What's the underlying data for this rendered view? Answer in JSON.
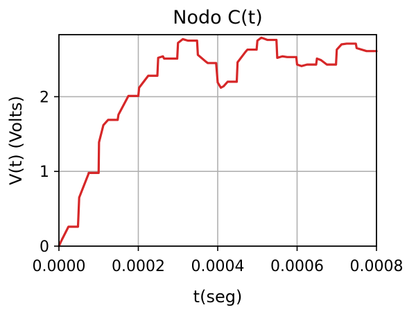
{
  "chart_data": {
    "type": "line",
    "title": "Nodo C(t)",
    "xlabel": "t(seg)",
    "ylabel": "V(t) (Volts)",
    "xlim": [
      0,
      0.0008
    ],
    "ylim": [
      0,
      2.83
    ],
    "xticks": [
      0,
      0.0002,
      0.0004,
      0.0006,
      0.0008
    ],
    "xtick_labels": [
      "0.0000",
      "0.0002",
      "0.0004",
      "0.0006",
      "0.0008"
    ],
    "yticks": [
      0,
      1,
      2
    ],
    "ytick_labels": [
      "0",
      "1",
      "2"
    ],
    "grid": true,
    "series": [
      {
        "color": "#d62728",
        "x": [
          0,
          5e-06,
          2.4e-05,
          4.8e-05,
          5.1e-05,
          7.4e-05,
          7.5e-05,
          0.0001,
          0.000101,
          0.000112,
          0.000124,
          0.000148,
          0.00015,
          0.000172,
          0.000175,
          0.0002,
          0.000202,
          0.000212,
          0.000225,
          0.000248,
          0.00025,
          0.000262,
          0.000265,
          0.000298,
          0.0003,
          0.000312,
          0.000325,
          0.000348,
          0.00035,
          0.00037,
          0.000375,
          0.000396,
          0.0004,
          0.000408,
          0.000415,
          0.000425,
          0.000448,
          0.00045,
          0.00047,
          0.000475,
          0.000498,
          0.0005,
          0.00051,
          0.000525,
          0.000548,
          0.00055,
          0.000563,
          0.000575,
          0.000598,
          0.0006,
          0.000611,
          0.000625,
          0.000648,
          0.00065,
          0.00066,
          0.000675,
          0.000698,
          0.0007,
          0.000712,
          0.000725,
          0.000748,
          0.00075,
          0.000775,
          0.0008
        ],
        "y": [
          0,
          0.06,
          0.26,
          0.26,
          0.65,
          0.96,
          0.98,
          0.98,
          1.39,
          1.62,
          1.69,
          1.69,
          1.76,
          1.98,
          2.01,
          2.01,
          2.12,
          2.19,
          2.28,
          2.28,
          2.52,
          2.54,
          2.51,
          2.51,
          2.72,
          2.77,
          2.75,
          2.75,
          2.56,
          2.47,
          2.45,
          2.45,
          2.19,
          2.12,
          2.14,
          2.2,
          2.2,
          2.46,
          2.6,
          2.63,
          2.63,
          2.75,
          2.79,
          2.76,
          2.76,
          2.52,
          2.54,
          2.53,
          2.53,
          2.43,
          2.41,
          2.43,
          2.43,
          2.51,
          2.49,
          2.43,
          2.43,
          2.63,
          2.7,
          2.71,
          2.71,
          2.65,
          2.61,
          2.61
        ]
      }
    ]
  }
}
